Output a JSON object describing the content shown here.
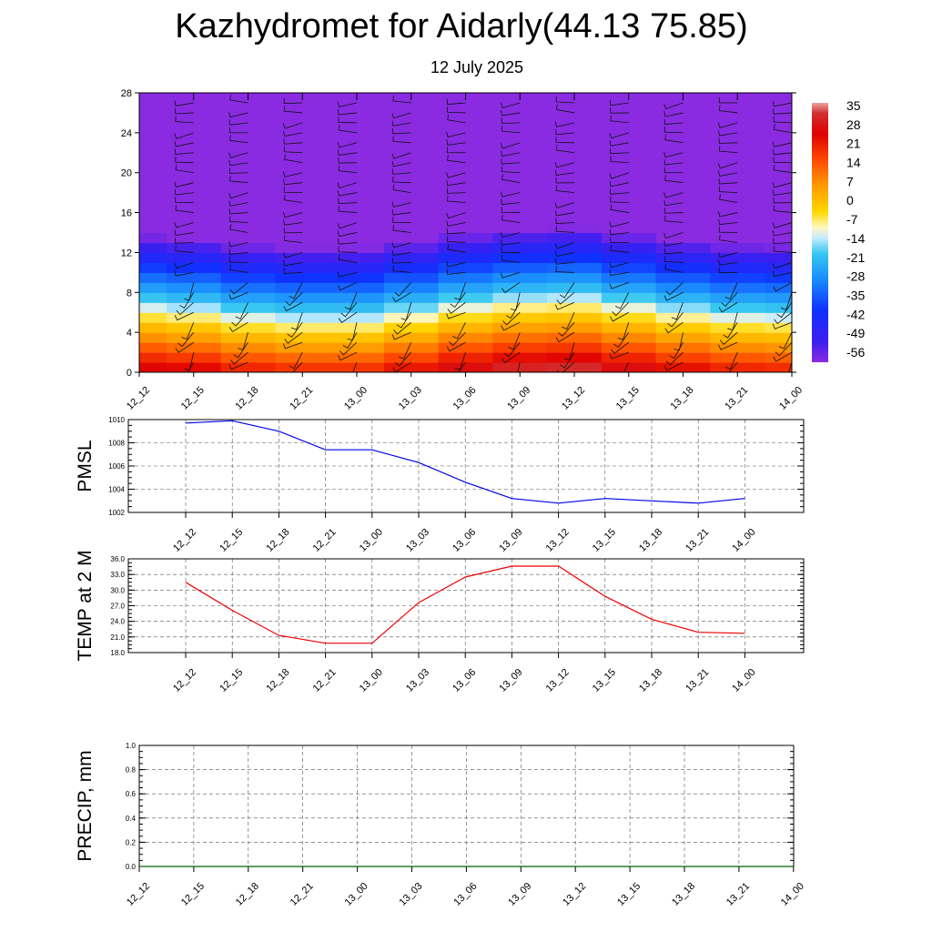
{
  "title": "Kazhydromet for Aidarly(44.13 75.85)",
  "subtitle": "12 July 2025",
  "time_labels": [
    "12_12",
    "12_15",
    "12_18",
    "12_21",
    "13_00",
    "13_03",
    "13_06",
    "13_09",
    "13_12",
    "13_15",
    "13_18",
    "13_21",
    "14_00"
  ],
  "chart_data": [
    {
      "type": "heatmap",
      "x": [
        "12_12",
        "12_15",
        "12_18",
        "12_21",
        "13_00",
        "13_03",
        "13_06",
        "13_09",
        "13_12",
        "13_15",
        "13_18",
        "13_21",
        "14_00"
      ],
      "ylim": [
        0,
        28
      ],
      "yticks": [
        0,
        4,
        8,
        12,
        16,
        20,
        24,
        28
      ],
      "colorbar_labels": [
        "35",
        "28",
        "21",
        "14",
        "7",
        "0",
        "-7",
        "-14",
        "-21",
        "-28",
        "-35",
        "-42",
        "-49",
        "-56"
      ],
      "colorbar_range": [
        -60,
        38
      ],
      "surface_values": [
        30,
        28,
        24,
        22,
        22,
        26,
        31,
        34,
        35,
        31,
        27,
        24,
        23
      ],
      "lapse_rate_per_level": -6.5,
      "wind_barbs": true,
      "grid": false
    },
    {
      "type": "line",
      "ylabel": "PMSL",
      "x": [
        "12_12",
        "12_15",
        "12_18",
        "12_21",
        "13_00",
        "13_03",
        "13_06",
        "13_09",
        "13_12",
        "13_15",
        "13_18",
        "13_21",
        "14_00"
      ],
      "series": [
        {
          "values": [
            1009.7,
            1009.9,
            1009.0,
            1007.4,
            1007.4,
            1006.3,
            1004.6,
            1003.2,
            1002.8,
            1003.2,
            1003.0,
            1002.8,
            1003.2
          ],
          "color": "#0000ee"
        }
      ],
      "ylim": [
        1002,
        1010
      ],
      "yticks": [
        "1002",
        "1004",
        "1006",
        "1008",
        "1010"
      ],
      "grid": true
    },
    {
      "type": "line",
      "ylabel": "TEMP at 2 M",
      "x": [
        "12_12",
        "12_15",
        "12_18",
        "12_21",
        "13_00",
        "13_03",
        "13_06",
        "13_09",
        "13_12",
        "13_15",
        "13_18",
        "13_21",
        "14_00"
      ],
      "series": [
        {
          "values": [
            31.5,
            26.1,
            21.3,
            19.8,
            19.8,
            27.6,
            32.5,
            34.6,
            34.6,
            28.8,
            24.4,
            21.9,
            21.7
          ],
          "color": "#ee0000"
        }
      ],
      "ylim": [
        18,
        36
      ],
      "yticks": [
        "18.0",
        "21.0",
        "24.0",
        "27.0",
        "30.0",
        "33.0",
        "36.0"
      ],
      "grid": true
    },
    {
      "type": "line",
      "ylabel": "PRECIP, mm",
      "x": [
        "12_12",
        "12_15",
        "12_18",
        "12_21",
        "13_00",
        "13_03",
        "13_06",
        "13_09",
        "13_12",
        "13_15",
        "13_18",
        "13_21",
        "14_00"
      ],
      "series": [
        {
          "values": [
            0,
            0,
            0,
            0,
            0,
            0,
            0,
            0,
            0,
            0,
            0,
            0,
            0
          ],
          "color": "#006400"
        }
      ],
      "ylim": [
        0,
        1
      ],
      "yticks": [
        "0.0",
        "0.2",
        "0.4",
        "0.6",
        "0.8",
        "1.0"
      ],
      "grid": true
    }
  ]
}
